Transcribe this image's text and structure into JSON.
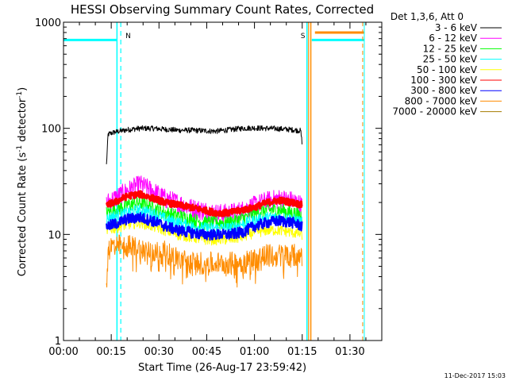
{
  "chart_data": {
    "type": "line",
    "title": "HESSI Observing Summary Count Rates, Corrected",
    "xlabel": "Start Time (26-Aug-17 23:59:42)",
    "ylabel_main": "Corrected Count Rate (s",
    "ylabel_sup1": "-1",
    "ylabel_mid": " detector",
    "ylabel_sup2": "-1",
    "ylabel_end": ")",
    "x_unit": "minutes since start time",
    "xlim": [
      0,
      100
    ],
    "ylim": [
      1,
      1000
    ],
    "yscale": "log",
    "x_ticks": [
      {
        "value": 0,
        "label": "00:00"
      },
      {
        "value": 15,
        "label": "00:15"
      },
      {
        "value": 30,
        "label": "00:30"
      },
      {
        "value": 45,
        "label": "00:45"
      },
      {
        "value": 60,
        "label": "01:00"
      },
      {
        "value": 75,
        "label": "01:15"
      },
      {
        "value": 90,
        "label": "01:30"
      }
    ],
    "y_ticks": [
      {
        "value": 1,
        "label": "1"
      },
      {
        "value": 10,
        "label": "10"
      },
      {
        "value": 100,
        "label": "100"
      },
      {
        "value": 1000,
        "label": "1000"
      }
    ],
    "legend_title": "Det 1,3,6, Att 0",
    "legend_position": "right",
    "series": [
      {
        "name": "3 - 6 keV",
        "color": "#000000",
        "x": [
          13.5,
          14,
          16,
          20,
          24,
          28,
          32,
          36,
          40,
          44,
          48,
          52,
          56,
          60,
          64,
          68,
          72,
          74.5,
          75
        ],
        "y": [
          45,
          88,
          92,
          97,
          100,
          100,
          98,
          96,
          96,
          95,
          94,
          97,
          100,
          101,
          100,
          99,
          97,
          95,
          72
        ]
      },
      {
        "name": "6 - 12 keV",
        "color": "#ff00ff",
        "x": [
          13.5,
          16,
          20,
          24,
          28,
          32,
          36,
          40,
          44,
          48,
          52,
          56,
          60,
          64,
          68,
          72,
          75
        ],
        "y": [
          20,
          22,
          26,
          30,
          26,
          22,
          20,
          18,
          17,
          16,
          16,
          17,
          19,
          21,
          22,
          21,
          19
        ]
      },
      {
        "name": "12 - 25 keV",
        "color": "#00ff00",
        "x": [
          13.5,
          16,
          20,
          24,
          28,
          32,
          36,
          40,
          44,
          48,
          52,
          56,
          60,
          64,
          68,
          72,
          75
        ],
        "y": [
          16,
          17,
          19,
          20,
          18,
          16,
          15,
          14,
          13,
          13,
          13,
          14,
          16,
          17,
          17,
          16,
          15
        ]
      },
      {
        "name": "25 - 50 keV",
        "color": "#00ffff",
        "x": [
          13.5,
          16,
          20,
          24,
          28,
          32,
          36,
          40,
          44,
          48,
          52,
          56,
          60,
          64,
          68,
          72,
          75
        ],
        "y": [
          14,
          15,
          16,
          17,
          16,
          14,
          13,
          12,
          11.5,
          11.5,
          11.5,
          12.5,
          13.5,
          14.5,
          14.5,
          14,
          13
        ]
      },
      {
        "name": "50 - 100 keV",
        "color": "#ffff00",
        "x": [
          13.5,
          16,
          20,
          24,
          28,
          32,
          36,
          40,
          44,
          48,
          52,
          56,
          60,
          64,
          68,
          72,
          75
        ],
        "y": [
          11,
          11.5,
          12.5,
          13,
          12,
          11,
          10,
          9.5,
          9,
          9,
          9,
          9.5,
          10.5,
          11,
          11,
          10.5,
          10
        ]
      },
      {
        "name": "100 - 300 keV",
        "color": "#ff0000",
        "x": [
          13.5,
          16,
          20,
          24,
          28,
          32,
          36,
          40,
          44,
          48,
          52,
          56,
          60,
          64,
          68,
          72,
          75
        ],
        "y": [
          19,
          20,
          23,
          24,
          22,
          20,
          19,
          18,
          17,
          16,
          16,
          17,
          18,
          20,
          21,
          20,
          19
        ]
      },
      {
        "name": "300 - 800 keV",
        "color": "#0000ff",
        "x": [
          13.5,
          16,
          20,
          24,
          28,
          32,
          36,
          40,
          44,
          48,
          52,
          56,
          60,
          64,
          68,
          72,
          75
        ],
        "y": [
          12,
          12.5,
          14,
          14.5,
          13.5,
          12,
          11,
          10.5,
          10,
          10,
          10,
          10.5,
          12,
          13,
          13.5,
          13,
          12
        ]
      },
      {
        "name": "800 - 7000 keV",
        "color": "#ff8c00",
        "x": [
          13.5,
          14,
          16,
          20,
          24,
          28,
          32,
          36,
          40,
          44,
          48,
          52,
          56,
          60,
          64,
          68,
          72,
          75
        ],
        "y": [
          3,
          7.5,
          8,
          8,
          7.5,
          7,
          7,
          6,
          5.5,
          5.5,
          5.5,
          5.5,
          5.5,
          6,
          6.5,
          6.5,
          6.5,
          6.5
        ]
      },
      {
        "name": "7000 - 20000 keV",
        "color": "#a67c00",
        "x": [],
        "y": []
      }
    ],
    "flag_lines": [
      {
        "label": "N",
        "color": "#00ffff",
        "x": 18,
        "style": "dashed"
      },
      {
        "label": "S",
        "color": "#ff8c00",
        "x": 77,
        "style": "solid"
      }
    ]
  },
  "footer_date": "11-Dec-2017 15:03"
}
